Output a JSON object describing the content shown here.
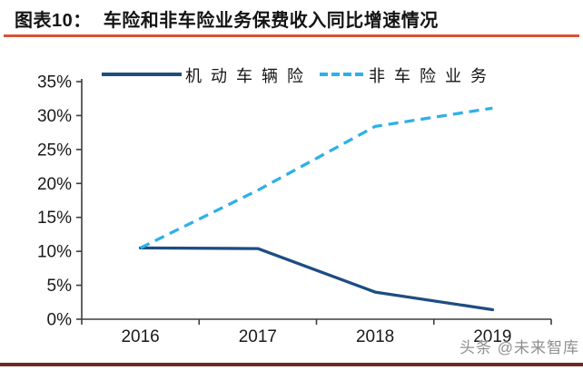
{
  "header": {
    "label": "图表10：",
    "title": "车险和非车险业务保费收入同比增速情况"
  },
  "watermark": "头条 @未来智库",
  "colors": {
    "title_rule": "#d95334",
    "bottom_rule": "#6e2b22",
    "axis": "#3d3d3d",
    "tick_text": "#1a1a1a",
    "series_solid": "#1e4d80",
    "series_dashed": "#2fb0e8"
  },
  "chart_data": {
    "type": "line",
    "title": "车险和非车险业务保费收入同比增速情况",
    "categories": [
      "2016",
      "2017",
      "2018",
      "2019"
    ],
    "series": [
      {
        "name": "机动车辆险",
        "style": "solid",
        "color": "#1e4d80",
        "values": [
          10.5,
          10.4,
          4.0,
          1.4
        ]
      },
      {
        "name": "非车险业务",
        "style": "dashed",
        "color": "#2fb0e8",
        "values": [
          10.5,
          19.0,
          28.4,
          31.1
        ]
      }
    ],
    "xlabel": "",
    "ylabel": "",
    "ylim": [
      0,
      35
    ],
    "ytick_step": 5,
    "ytick_labels": [
      "35%",
      "30%",
      "25%",
      "20%",
      "15%",
      "10%",
      "5%",
      "0%"
    ],
    "legend_position": "top",
    "grid": false
  }
}
